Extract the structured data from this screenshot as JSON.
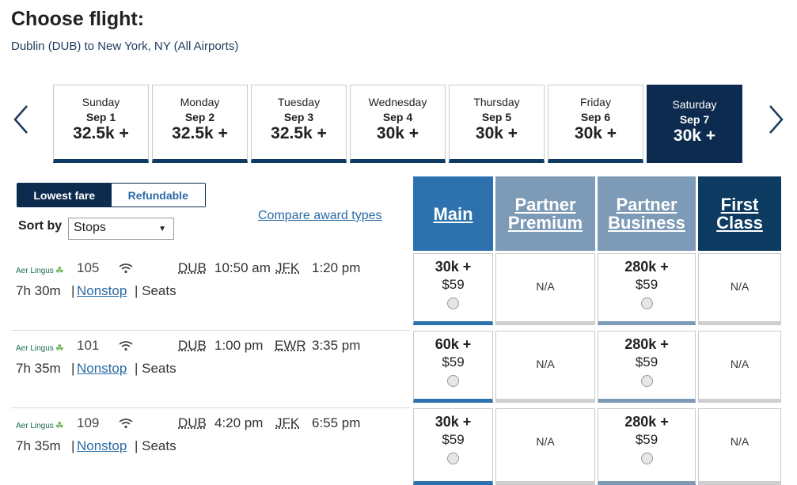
{
  "header": {
    "title": "Choose flight:",
    "route": "Dublin (DUB) to New York, NY (All Airports)"
  },
  "days": [
    {
      "dow": "Sunday",
      "date": "Sep 1",
      "price": "32.5k +"
    },
    {
      "dow": "Monday",
      "date": "Sep 2",
      "price": "32.5k +"
    },
    {
      "dow": "Tuesday",
      "date": "Sep 3",
      "price": "32.5k +"
    },
    {
      "dow": "Wednesday",
      "date": "Sep 4",
      "price": "30k +"
    },
    {
      "dow": "Thursday",
      "date": "Sep 5",
      "price": "30k +"
    },
    {
      "dow": "Friday",
      "date": "Sep 6",
      "price": "30k +"
    },
    {
      "dow": "Saturday",
      "date": "Sep 7",
      "price": "30k +",
      "selected": true
    }
  ],
  "fare_toggle": {
    "lowest": "Lowest fare",
    "refundable": "Refundable",
    "active": "lowest"
  },
  "sort": {
    "label": "Sort by",
    "value": "Stops"
  },
  "compare_link": "Compare award types",
  "cabins": {
    "main": "Main",
    "partner_premium_1": "Partner",
    "partner_premium_2": "Premium",
    "partner_business_1": "Partner",
    "partner_business_2": "Business",
    "first_1": "First",
    "first_2": "Class"
  },
  "colors": {
    "navy": "#0d2b4e",
    "main_blue": "#2d72ae",
    "partner_gray_blue": "#7d9ab7",
    "link_blue": "#2a6aa5"
  },
  "flights": [
    {
      "airline": "Aer Lingus",
      "flight_no": "105",
      "origin": "DUB",
      "depart": "10:50 am",
      "dest": "JFK",
      "arrive": "1:20 pm",
      "duration": "7h 30m",
      "stops": "Nonstop",
      "seats": "Seats",
      "main": {
        "miles": "30k +",
        "cash": "$59"
      },
      "partner_premium": "N/A",
      "partner_business": {
        "miles": "280k +",
        "cash": "$59"
      },
      "first": "N/A"
    },
    {
      "airline": "Aer Lingus",
      "flight_no": "101",
      "origin": "DUB",
      "depart": "1:00 pm",
      "dest": "EWR",
      "arrive": "3:35 pm",
      "duration": "7h 35m",
      "stops": "Nonstop",
      "seats": "Seats",
      "main": {
        "miles": "60k +",
        "cash": "$59"
      },
      "partner_premium": "N/A",
      "partner_business": {
        "miles": "280k +",
        "cash": "$59"
      },
      "first": "N/A"
    },
    {
      "airline": "Aer Lingus",
      "flight_no": "109",
      "origin": "DUB",
      "depart": "4:20 pm",
      "dest": "JFK",
      "arrive": "6:55 pm",
      "duration": "7h 35m",
      "stops": "Nonstop",
      "seats": "Seats",
      "main": {
        "miles": "30k +",
        "cash": "$59"
      },
      "partner_premium": "N/A",
      "partner_business": {
        "miles": "280k +",
        "cash": "$59"
      },
      "first": "N/A"
    }
  ]
}
